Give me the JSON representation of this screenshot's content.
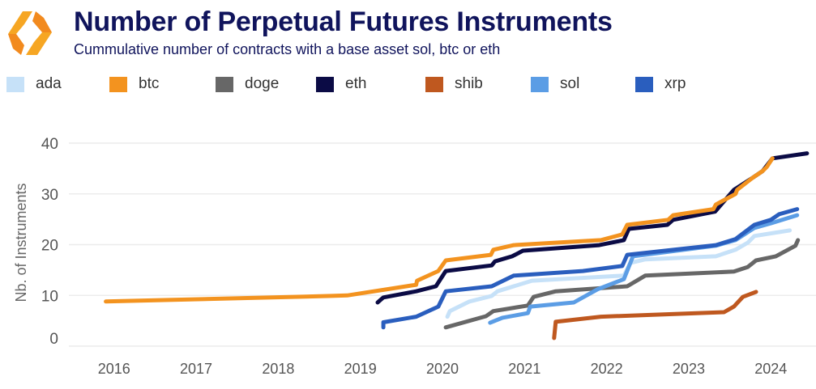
{
  "title": "Number of Perpetual Futures Instruments",
  "subtitle": "Cummulative number of contracts with a base asset sol, btc or eth",
  "chart_data": {
    "type": "line",
    "ylabel": "Nb. of Instruments",
    "xlabel": "",
    "ylim": [
      0,
      40
    ],
    "xlim": [
      2015.45,
      2024.55
    ],
    "yticks": [
      "0",
      "10",
      "20",
      "30",
      "40"
    ],
    "xticks": [
      "2016",
      "2017",
      "2018",
      "2019",
      "2020",
      "2021",
      "2022",
      "2023",
      "2024"
    ],
    "grid": true,
    "legend_position": "top",
    "series": [
      {
        "name": "ada",
        "color": "#c6e1f8",
        "points": [
          [
            2020.06,
            5.8
          ],
          [
            2020.09,
            6.9
          ],
          [
            2020.33,
            8.8
          ],
          [
            2020.6,
            9.9
          ],
          [
            2020.67,
            10.8
          ],
          [
            2021.09,
            12.9
          ],
          [
            2022.21,
            13.9
          ],
          [
            2022.29,
            16.4
          ],
          [
            2022.47,
            17.1
          ],
          [
            2023.33,
            17.7
          ],
          [
            2023.57,
            19.0
          ],
          [
            2023.72,
            20.4
          ],
          [
            2023.8,
            21.7
          ],
          [
            2024.23,
            22.8
          ]
        ]
      },
      {
        "name": "btc",
        "color": "#f3931f",
        "points": [
          [
            2015.9,
            8.8
          ],
          [
            2018.65,
            9.9
          ],
          [
            2018.84,
            10.0
          ],
          [
            2019.68,
            12.1
          ],
          [
            2019.69,
            12.9
          ],
          [
            2019.95,
            14.8
          ],
          [
            2020.04,
            16.9
          ],
          [
            2020.59,
            18.0
          ],
          [
            2020.62,
            19.0
          ],
          [
            2020.87,
            19.9
          ],
          [
            2021.93,
            20.9
          ],
          [
            2022.19,
            22.0
          ],
          [
            2022.25,
            23.9
          ],
          [
            2022.75,
            24.9
          ],
          [
            2022.81,
            25.8
          ],
          [
            2023.3,
            27.0
          ],
          [
            2023.33,
            27.9
          ],
          [
            2023.57,
            30.0
          ],
          [
            2023.59,
            30.8
          ],
          [
            2023.78,
            33.2
          ],
          [
            2023.9,
            34.5
          ],
          [
            2023.95,
            35.3
          ],
          [
            2024.02,
            37.0
          ]
        ]
      },
      {
        "name": "doge",
        "color": "#676767",
        "points": [
          [
            2020.04,
            3.7
          ],
          [
            2020.53,
            5.9
          ],
          [
            2020.62,
            6.9
          ],
          [
            2021.04,
            8.0
          ],
          [
            2021.11,
            9.7
          ],
          [
            2021.38,
            10.8
          ],
          [
            2022.25,
            11.8
          ],
          [
            2022.47,
            13.9
          ],
          [
            2023.55,
            14.7
          ],
          [
            2023.72,
            15.6
          ],
          [
            2023.82,
            16.9
          ],
          [
            2024.06,
            17.7
          ],
          [
            2024.3,
            19.8
          ],
          [
            2024.33,
            20.9
          ]
        ]
      },
      {
        "name": "eth",
        "color": "#0b0b45",
        "points": [
          [
            2019.21,
            8.6
          ],
          [
            2019.28,
            9.6
          ],
          [
            2019.68,
            10.8
          ],
          [
            2019.92,
            11.8
          ],
          [
            2020.04,
            14.8
          ],
          [
            2020.6,
            15.9
          ],
          [
            2020.64,
            16.7
          ],
          [
            2020.85,
            17.7
          ],
          [
            2020.98,
            18.8
          ],
          [
            2021.91,
            19.9
          ],
          [
            2022.21,
            20.9
          ],
          [
            2022.27,
            23.1
          ],
          [
            2022.74,
            23.9
          ],
          [
            2022.81,
            24.9
          ],
          [
            2023.32,
            26.5
          ],
          [
            2023.55,
            30.8
          ],
          [
            2023.78,
            33.2
          ],
          [
            2023.9,
            34.5
          ],
          [
            2024.02,
            37.0
          ],
          [
            2024.44,
            38.0
          ]
        ]
      },
      {
        "name": "shib",
        "color": "#bf581f",
        "points": [
          [
            2021.36,
            1.6
          ],
          [
            2021.38,
            4.8
          ],
          [
            2021.93,
            5.8
          ],
          [
            2023.43,
            6.7
          ],
          [
            2023.55,
            7.8
          ],
          [
            2023.66,
            9.7
          ],
          [
            2023.82,
            10.7
          ]
        ]
      },
      {
        "name": "sol",
        "color": "#5b9de5",
        "points": [
          [
            2020.58,
            4.6
          ],
          [
            2020.73,
            5.6
          ],
          [
            2021.04,
            6.5
          ],
          [
            2021.07,
            7.8
          ],
          [
            2021.6,
            8.6
          ],
          [
            2021.89,
            11.2
          ],
          [
            2022.21,
            13.2
          ],
          [
            2022.32,
            17.7
          ],
          [
            2023.33,
            19.8
          ],
          [
            2023.57,
            20.9
          ],
          [
            2023.8,
            23.3
          ],
          [
            2024.0,
            24.2
          ],
          [
            2024.32,
            25.8
          ]
        ]
      },
      {
        "name": "xrp",
        "color": "#2a5ebe",
        "points": [
          [
            2019.28,
            3.7
          ],
          [
            2019.28,
            4.7
          ],
          [
            2019.68,
            5.8
          ],
          [
            2019.95,
            7.8
          ],
          [
            2020.04,
            10.8
          ],
          [
            2020.6,
            11.8
          ],
          [
            2020.87,
            13.9
          ],
          [
            2021.71,
            14.8
          ],
          [
            2022.19,
            15.8
          ],
          [
            2022.25,
            18.0
          ],
          [
            2023.33,
            19.9
          ],
          [
            2023.57,
            21.1
          ],
          [
            2023.8,
            23.9
          ],
          [
            2024.0,
            24.9
          ],
          [
            2024.1,
            26.0
          ],
          [
            2024.32,
            27.0
          ]
        ]
      }
    ]
  }
}
